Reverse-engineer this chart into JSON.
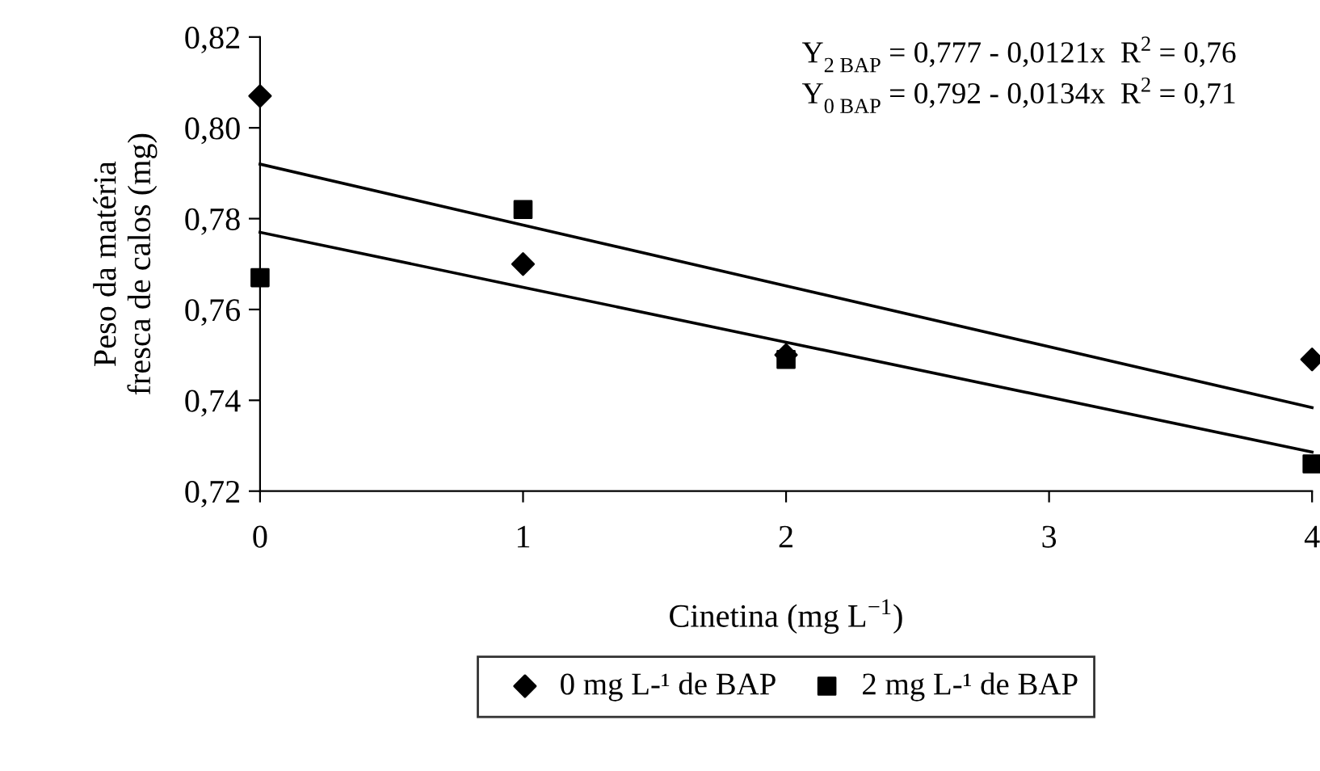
{
  "chart_data": {
    "type": "scatter",
    "xlabel": "Cinetina (mg L$^{−1}$)",
    "ylabel": "Peso da matéria\nfresca de calos (mg)",
    "x": [
      0,
      1,
      2,
      4
    ],
    "series": [
      {
        "name": "0 mg L-¹ de BAP",
        "color": "#000000",
        "marker": "diamond",
        "values": [
          0.807,
          0.77,
          0.75,
          0.749
        ]
      },
      {
        "name": "2 mg L-¹ de BAP",
        "color": "#000000",
        "marker": "square",
        "values": [
          0.767,
          0.782,
          0.749,
          0.726
        ]
      },
      {
        "type": "line",
        "color": "#000000",
        "values": [
          0.792,
          0.7786,
          0.7652,
          0.7384
        ],
        "line_style": "solid",
        "marker": "none"
      },
      {
        "type": "line",
        "color": "#000000",
        "values": [
          0.777,
          0.7649,
          0.7528,
          0.7286
        ],
        "line_style": "solid",
        "marker": "none"
      }
    ],
    "annotations": [
      "Y$_{2 BAP}$ = 0,777 - 0,0121x  R$^{2}$ = 0,76",
      "Y$_{0 BAP}$ = 0,792 - 0,0134x  R$^{2}$ = 0,71"
    ],
    "xlim": [
      0,
      4
    ],
    "xticks": [
      0,
      1,
      2,
      3,
      4
    ],
    "ylim": [
      0.72,
      0.82
    ],
    "yticks": [
      {
        "value": 0.72,
        "label": "0,72"
      },
      {
        "value": 0.74,
        "label": "0,74"
      },
      {
        "value": 0.76,
        "label": "0,76"
      },
      {
        "value": 0.78,
        "label": "0,78"
      },
      {
        "value": 0.8,
        "label": "0,80"
      },
      {
        "value": 0.82,
        "label": "0,82"
      }
    ],
    "grid": false,
    "legend": "bottom"
  }
}
